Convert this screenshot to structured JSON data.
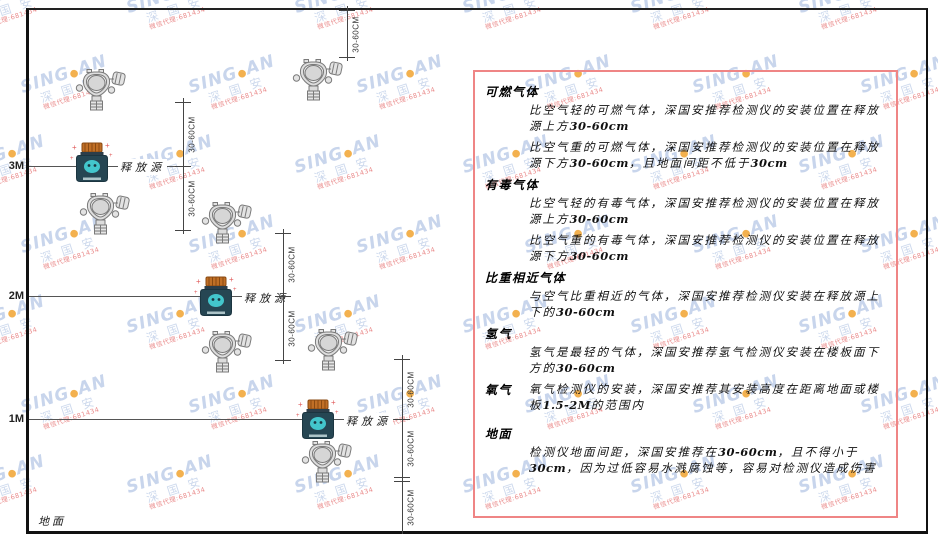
{
  "watermark": {
    "brand_first": "SING",
    "brand_dot": "●",
    "brand_second": "AN",
    "brand_cn": "深 国 安",
    "agent_line": "微信代理:681434",
    "brand_color": "#c3d1ea",
    "brand_cn_color": "#c9d6ec",
    "dot_color": "#f2a93c",
    "agent_color": "#e88080"
  },
  "diagram": {
    "height_labels": [
      "3M",
      "2M",
      "1M"
    ],
    "ground_label": "地面",
    "source_label": "释放源",
    "dim_label": "30-60CM"
  },
  "panel": {
    "border_color": "#ef8585",
    "sections": [
      {
        "heading": "可燃气体",
        "paras": [
          [
            {
              "t": "比空气轻的可燃气体，深国安推荐检测仪的安装位置在释放源上方"
            },
            {
              "t": "30-60cm",
              "b": true
            }
          ],
          [
            {
              "t": "比空气重的可燃气体，深国安推荐检测仪的安装位置在释放源下方"
            },
            {
              "t": "30-60cm",
              "b": true
            },
            {
              "t": "，且地面间距不低于"
            },
            {
              "t": "30cm",
              "b": true
            }
          ]
        ]
      },
      {
        "heading": "有毒气体",
        "paras": [
          [
            {
              "t": "比空气轻的有毒气体，深国安推荐检测仪的安装位置在释放源上方"
            },
            {
              "t": "30-60cm",
              "b": true
            }
          ],
          [
            {
              "t": "比空气重的有毒气体，深国安推荐检测仪的安装位置在释放源下方"
            },
            {
              "t": "30-60cm",
              "b": true
            }
          ]
        ]
      },
      {
        "heading": "比重相近气体",
        "paras": [
          [
            {
              "t": "与空气比重相近的气体，深国安推荐检测仪安装在释放源上下的"
            },
            {
              "t": "30-60cm",
              "b": true
            }
          ]
        ]
      },
      {
        "heading": "氢气",
        "paras": [
          [
            {
              "t": "氢气是最轻的气体，深国安推荐氢气检测仪安装在楼板面下方的"
            },
            {
              "t": "30-60cm",
              "b": true
            }
          ]
        ]
      },
      {
        "heading": "氧气",
        "paras": [
          [
            {
              "t": "氧气检测仪的安装，深国安推荐其安装高度在距离地面或楼板"
            },
            {
              "t": "1.5-2M",
              "b": true
            },
            {
              "t": "的范围内"
            }
          ]
        ]
      },
      {
        "heading": "地面",
        "paras": [
          [
            {
              "t": "检测仪地面间距，深国安推荐在"
            },
            {
              "t": "30-60cm",
              "b": true
            },
            {
              "t": "，且不得小于"
            },
            {
              "t": "30cm",
              "b": true
            },
            {
              "t": "，因为过低容易水溅腐蚀等，容易对检测仪造成伤害"
            }
          ]
        ]
      }
    ]
  }
}
